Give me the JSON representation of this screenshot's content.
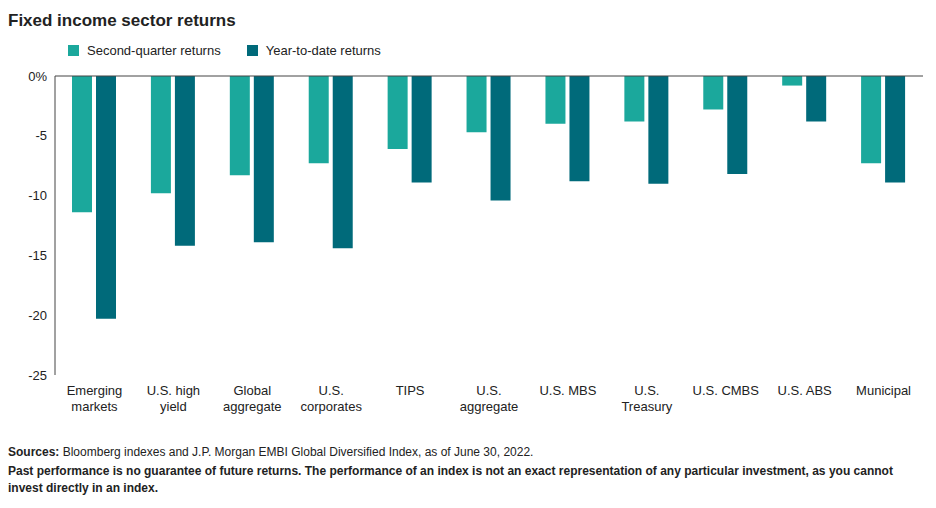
{
  "chart_data": {
    "type": "bar",
    "title": "Fixed income sector returns",
    "categories": [
      "Emerging markets",
      "U.S. high yield",
      "Global aggregate",
      "U.S. corporates",
      "TIPS",
      "U.S. aggregate",
      "U.S. MBS",
      "U.S. Treasury",
      "U.S. CMBS",
      "U.S. ABS",
      "Municipal"
    ],
    "series": [
      {
        "name": "Second-quarter returns",
        "color": "#1ba89c",
        "values": [
          -11.4,
          -9.8,
          -8.3,
          -7.3,
          -6.1,
          -4.7,
          -4.0,
          -3.8,
          -2.8,
          -0.8,
          -7.3
        ]
      },
      {
        "name": "Year-to-date returns",
        "color": "#006a7a",
        "values": [
          -20.3,
          -14.2,
          -13.9,
          -14.4,
          -8.9,
          -10.4,
          -8.8,
          -9.0,
          -8.2,
          -3.8,
          -8.9
        ]
      }
    ],
    "ylim": [
      -25,
      0
    ],
    "yticks": [
      {
        "value": 0,
        "label": "0%"
      },
      -5,
      -10,
      -15,
      -20,
      -25
    ],
    "grid": false,
    "legend": "top",
    "source": "Sources: Bloomberg indexes and J.P. Morgan EMBI Global Diversified Index, as of June 30, 2022.",
    "note": "Past performance is no guarantee of future returns. The performance of an index is not an exact representation of any particular investment, as you cannot invest directly in an index."
  }
}
